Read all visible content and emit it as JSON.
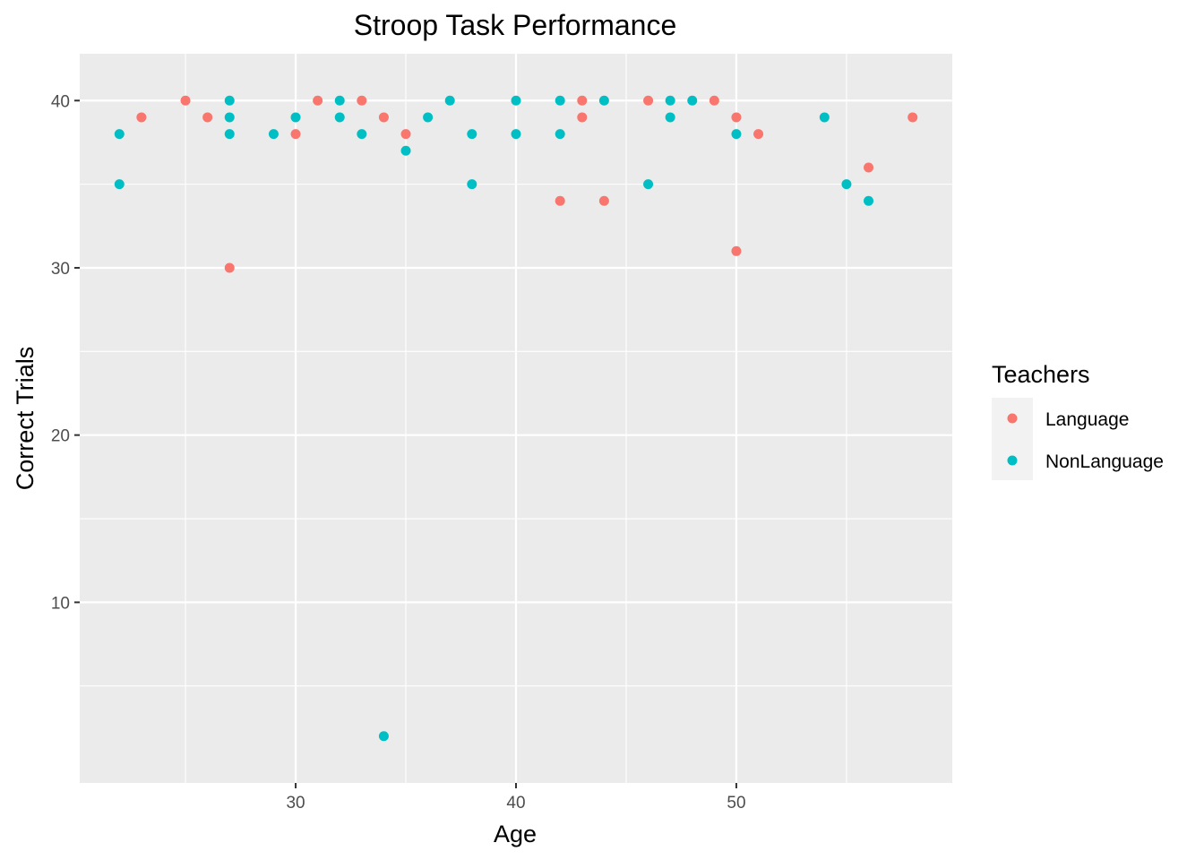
{
  "chart_data": {
    "type": "scatter",
    "title": "Stroop Task Performance",
    "xlabel": "Age",
    "ylabel": "Correct Trials",
    "xlim": [
      20.2,
      59.8
    ],
    "ylim": [
      -0.8,
      42.8
    ],
    "x_ticks": [
      30,
      40,
      50
    ],
    "x_minor_ticks": [
      25,
      35,
      45,
      55
    ],
    "y_ticks": [
      10,
      20,
      30,
      40
    ],
    "y_minor_ticks": [
      5,
      15,
      25,
      35
    ],
    "grid": true,
    "legend": {
      "title": "Teachers",
      "position": "right"
    },
    "series": [
      {
        "name": "Language",
        "color": "#F8766D",
        "points": [
          [
            23,
            39
          ],
          [
            25,
            40
          ],
          [
            26,
            39
          ],
          [
            27,
            30
          ],
          [
            30,
            38
          ],
          [
            31,
            40
          ],
          [
            33,
            40
          ],
          [
            34,
            39
          ],
          [
            35,
            38
          ],
          [
            42,
            34
          ],
          [
            43,
            40
          ],
          [
            43,
            39
          ],
          [
            44,
            34
          ],
          [
            46,
            40
          ],
          [
            49,
            40
          ],
          [
            50,
            39
          ],
          [
            50,
            31
          ],
          [
            51,
            38
          ],
          [
            56,
            36
          ],
          [
            58,
            39
          ]
        ]
      },
      {
        "name": "NonLanguage",
        "color": "#00BFC4",
        "points": [
          [
            22,
            38
          ],
          [
            22,
            35
          ],
          [
            27,
            40
          ],
          [
            27,
            39
          ],
          [
            27,
            38
          ],
          [
            29,
            38
          ],
          [
            30,
            39
          ],
          [
            32,
            40
          ],
          [
            32,
            39
          ],
          [
            33,
            38
          ],
          [
            34,
            2
          ],
          [
            35,
            37
          ],
          [
            36,
            39
          ],
          [
            37,
            40
          ],
          [
            38,
            38
          ],
          [
            38,
            35
          ],
          [
            40,
            40
          ],
          [
            40,
            38
          ],
          [
            42,
            40
          ],
          [
            42,
            38
          ],
          [
            44,
            40
          ],
          [
            46,
            35
          ],
          [
            47,
            40
          ],
          [
            47,
            39
          ],
          [
            48,
            40
          ],
          [
            50,
            38
          ],
          [
            54,
            39
          ],
          [
            55,
            35
          ],
          [
            56,
            34
          ]
        ]
      }
    ]
  }
}
